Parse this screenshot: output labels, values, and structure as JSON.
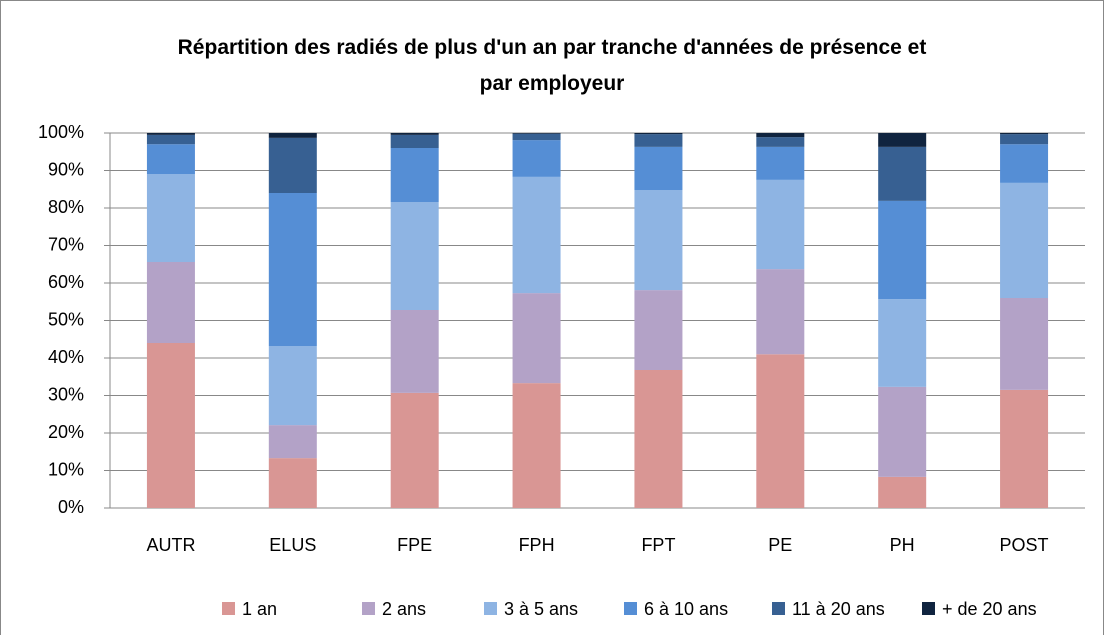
{
  "chart_data": {
    "type": "stacked_bar",
    "title": "Répartition des radiés de plus d'un an par tranche d'années de présence et par employeur",
    "categories": [
      "AUTR",
      "ELUS",
      "FPE",
      "FPH",
      "FPT",
      "PE",
      "PH",
      "POST"
    ],
    "series": [
      {
        "name": "1 an",
        "color": "#d99694",
        "values": [
          44,
          13.3,
          30.7,
          33.3,
          36.8,
          41,
          8.3,
          31.5
        ]
      },
      {
        "name": "2 ans",
        "color": "#b3a2c7",
        "values": [
          21.6,
          8.8,
          22.1,
          24,
          21.3,
          22.7,
          24,
          24.5
        ]
      },
      {
        "name": "3 à 5 ans",
        "color": "#8eb4e3",
        "values": [
          23.4,
          21.1,
          28.8,
          31,
          26.7,
          23.8,
          23.4,
          30.7
        ]
      },
      {
        "name": "6 à 10 ans",
        "color": "#558ed5",
        "values": [
          8,
          40.8,
          14.4,
          9.8,
          11.5,
          8.8,
          26.2,
          10.3
        ]
      },
      {
        "name": "11 à 20 ans",
        "color": "#376092",
        "values": [
          2.5,
          14.7,
          3.5,
          1.7,
          3.4,
          2.6,
          14.4,
          2.7
        ]
      },
      {
        "name": "+ de 20 ans",
        "color": "#10243f",
        "values": [
          0.5,
          1.3,
          0.5,
          0.2,
          0.3,
          1.1,
          3.7,
          0.3
        ]
      }
    ],
    "ylim": [
      0,
      100
    ],
    "yticks": [
      {
        "value": 0,
        "label": "0%"
      },
      {
        "value": 10,
        "label": "10%"
      },
      {
        "value": 20,
        "label": "20%"
      },
      {
        "value": 30,
        "label": "30%"
      },
      {
        "value": 40,
        "label": "40%"
      },
      {
        "value": 50,
        "label": "50%"
      },
      {
        "value": 60,
        "label": "60%"
      },
      {
        "value": 70,
        "label": "70%"
      },
      {
        "value": 80,
        "label": "80%"
      },
      {
        "value": 90,
        "label": "90%"
      },
      {
        "value": 100,
        "label": "100%"
      }
    ],
    "grid": true,
    "legend": "bottom"
  }
}
